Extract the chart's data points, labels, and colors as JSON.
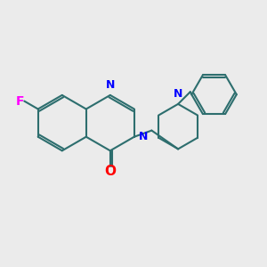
{
  "bg_color": "#ebebeb",
  "bond_color": "#2d6e6e",
  "N_color": "#0000ff",
  "O_color": "#ff0000",
  "F_color": "#ff00ff",
  "line_width": 1.5,
  "font_size": 9,
  "xlim": [
    0,
    10
  ],
  "ylim": [
    0,
    10
  ]
}
